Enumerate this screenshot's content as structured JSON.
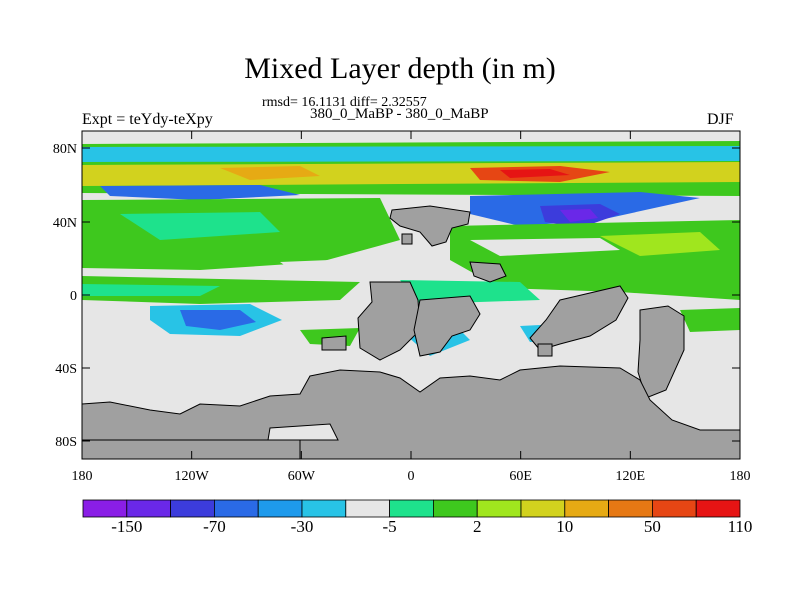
{
  "title": "Mixed Layer depth (in m)",
  "stats_line": "rmsd= 16.1131 diff= 2.32557",
  "subtitle": "380_0_MaBP - 380_0_MaBP",
  "experiment_label": "Expt = teYdy-teXpy",
  "season_label": "DJF",
  "map": {
    "y_ticks": [
      {
        "label": "80N"
      },
      {
        "label": "40N"
      },
      {
        "label": "0"
      },
      {
        "label": "40S"
      },
      {
        "label": "80S"
      }
    ],
    "x_ticks": [
      {
        "label": "180"
      },
      {
        "label": "120W"
      },
      {
        "label": "60W"
      },
      {
        "label": "0"
      },
      {
        "label": "60E"
      },
      {
        "label": "120E"
      },
      {
        "label": "180"
      }
    ]
  },
  "colorbar": {
    "colors": [
      "#8a1ee6",
      "#6a28e8",
      "#3c3cdc",
      "#2a6ae6",
      "#1e9aec",
      "#28c3e6",
      "#e6e6e6",
      "#1ee28c",
      "#3ec81e",
      "#a0e61e",
      "#d2d21e",
      "#e6aa14",
      "#e67814",
      "#e64614",
      "#e61414"
    ],
    "labels": [
      "-150",
      "-70",
      "-30",
      "-5",
      "2",
      "10",
      "50",
      "110"
    ]
  },
  "land_color": "#a0a0a0",
  "background_color": "#e6e6e6"
}
